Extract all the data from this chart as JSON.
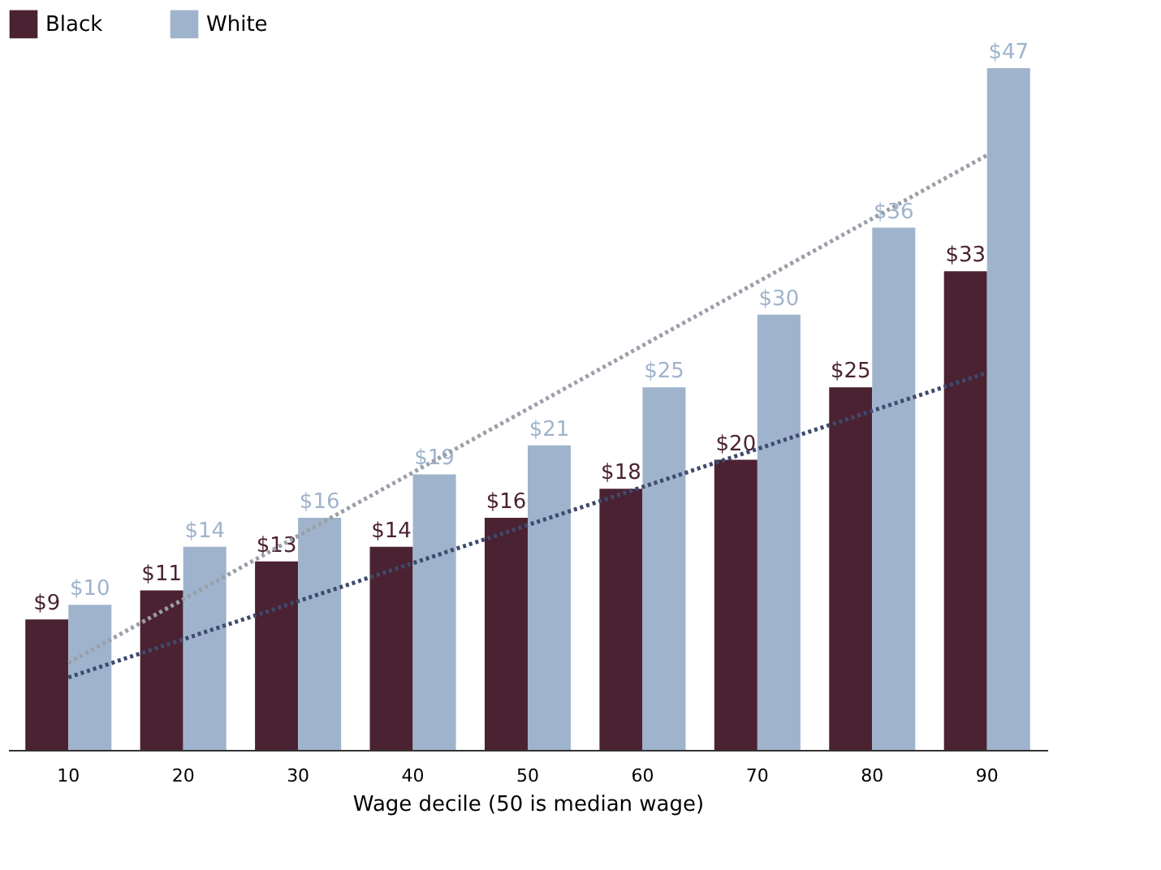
{
  "chart_data": {
    "type": "bar",
    "xlabel": "Wage decile (50 is median wage)",
    "categories": [
      "10",
      "20",
      "30",
      "40",
      "50",
      "60",
      "70",
      "80",
      "90"
    ],
    "series": [
      {
        "name": "Black",
        "color": "#4b2232",
        "values": [
          9,
          11,
          13,
          14,
          16,
          18,
          20,
          25,
          33
        ],
        "value_labels": [
          "$9",
          "$11",
          "$13",
          "$14",
          "$16",
          "$18",
          "$20",
          "$25",
          "$33"
        ]
      },
      {
        "name": "White",
        "color": "#9fb4cc",
        "values": [
          10,
          14,
          16,
          19,
          21,
          25,
          30,
          36,
          47
        ],
        "value_labels": [
          "$10",
          "$14",
          "$16",
          "$19",
          "$21",
          "$25",
          "$30",
          "$36",
          "$47"
        ]
      },
      {
        "type": "line",
        "color": "#3e4a6e",
        "line_style": "dotted",
        "x": [
          "10",
          "90"
        ],
        "values": [
          5,
          26
        ]
      },
      {
        "type": "line",
        "color": "#9a9fa8",
        "line_style": "dotted",
        "x": [
          "10",
          "90"
        ],
        "values": [
          6,
          41
        ]
      }
    ],
    "tick_labels": "x",
    "legend": "top"
  }
}
